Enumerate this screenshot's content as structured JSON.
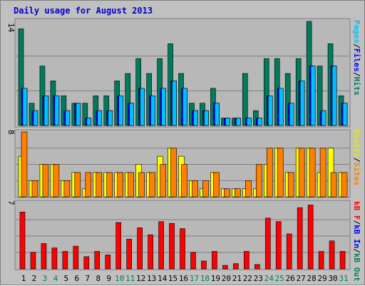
{
  "title": "Daily usage for August 2013",
  "colors": {
    "background": "#c0c0c0",
    "plot_area": "#b8b8b8",
    "hits": "#007b5e",
    "files": "#0000ff",
    "pages": "#00c0ff",
    "sites": "#ff8000",
    "visits": "#ffff00",
    "kbin": "#00a060",
    "kbout": "#0000ff",
    "kbf": "#ff0000",
    "weekend_label": "#00805a",
    "weekday_label": "#000000",
    "title_color": "#0000cc"
  },
  "chart_data": [
    {
      "type": "bar",
      "name": "hits-files-pages",
      "ymax_label": "14",
      "ylim": [
        0,
        14
      ],
      "legend": [
        "Pages",
        "Files",
        "Hits"
      ],
      "categories": [
        "1",
        "2",
        "3",
        "4",
        "5",
        "6",
        "7",
        "8",
        "9",
        "10",
        "11",
        "12",
        "13",
        "14",
        "15",
        "16",
        "17",
        "18",
        "19",
        "20",
        "21",
        "22",
        "23",
        "24",
        "25",
        "26",
        "27",
        "28",
        "29",
        "30",
        "31"
      ],
      "series": [
        {
          "name": "Hits",
          "values": [
            13,
            3,
            8,
            6,
            4,
            3,
            3,
            4,
            4,
            6,
            7,
            9,
            7,
            9,
            11,
            7,
            3,
            3,
            5,
            1,
            1,
            7,
            2,
            9,
            9,
            7,
            9,
            14,
            8,
            11,
            4
          ]
        },
        {
          "name": "Files",
          "values": [
            5,
            2,
            4,
            4,
            2,
            3,
            1,
            2,
            2,
            4,
            3,
            5,
            4,
            5,
            6,
            5,
            2,
            2,
            3,
            1,
            1,
            1,
            1,
            4,
            5,
            3,
            6,
            8,
            2,
            8,
            3
          ]
        },
        {
          "name": "Pages",
          "values": [
            5,
            2,
            4,
            4,
            2,
            3,
            1,
            2,
            2,
            4,
            3,
            5,
            4,
            5,
            6,
            5,
            2,
            2,
            3,
            1,
            1,
            1,
            1,
            4,
            5,
            3,
            6,
            8,
            2,
            8,
            3
          ]
        }
      ]
    },
    {
      "type": "bar",
      "name": "visits-sites",
      "ymax_label": "8",
      "ylim": [
        0,
        8
      ],
      "legend": [
        "Visits",
        "Sites"
      ],
      "categories": [
        "1",
        "2",
        "3",
        "4",
        "5",
        "6",
        "7",
        "8",
        "9",
        "10",
        "11",
        "12",
        "13",
        "14",
        "15",
        "16",
        "17",
        "18",
        "19",
        "20",
        "21",
        "22",
        "23",
        "24",
        "25",
        "26",
        "27",
        "28",
        "29",
        "30",
        "31"
      ],
      "series": [
        {
          "name": "Visits",
          "values": [
            5,
            2,
            4,
            4,
            2,
            3,
            1,
            3,
            3,
            3,
            3,
            4,
            3,
            5,
            6,
            5,
            2,
            1,
            3,
            1,
            1,
            1,
            1,
            4,
            6,
            3,
            6,
            6,
            3,
            6,
            3
          ]
        },
        {
          "name": "Sites",
          "values": [
            8,
            2,
            4,
            4,
            2,
            3,
            3,
            3,
            3,
            3,
            3,
            3,
            3,
            4,
            6,
            4,
            2,
            2,
            3,
            1,
            1,
            2,
            4,
            6,
            6,
            3,
            6,
            6,
            6,
            3,
            3
          ]
        }
      ]
    },
    {
      "type": "bar",
      "name": "kbytes",
      "ymax_label": "7",
      "ylim": [
        0,
        7
      ],
      "legend": [
        "kB F",
        "kB In",
        "kB Out"
      ],
      "categories": [
        "1",
        "2",
        "3",
        "4",
        "5",
        "6",
        "7",
        "8",
        "9",
        "10",
        "11",
        "12",
        "13",
        "14",
        "15",
        "16",
        "17",
        "18",
        "19",
        "20",
        "21",
        "22",
        "23",
        "24",
        "25",
        "26",
        "27",
        "28",
        "29",
        "30",
        "31"
      ],
      "series": [
        {
          "name": "kB F",
          "values": [
            6.5,
            1.9,
            2.9,
            2.4,
            2.0,
            2.6,
            1.4,
            2.0,
            1.6,
            5.3,
            3.4,
            4.7,
            3.9,
            5.4,
            5.2,
            4.6,
            1.9,
            0.9,
            2.0,
            0.4,
            0.6,
            2.0,
            0.5,
            5.8,
            5.4,
            4.0,
            7.0,
            7.3,
            2.0,
            3.2,
            2.0
          ]
        }
      ]
    }
  ],
  "x_labels": [
    {
      "t": "1",
      "we": false
    },
    {
      "t": "2",
      "we": false
    },
    {
      "t": "3",
      "we": true
    },
    {
      "t": "4",
      "we": true
    },
    {
      "t": "5",
      "we": false
    },
    {
      "t": "6",
      "we": false
    },
    {
      "t": "7",
      "we": false
    },
    {
      "t": "8",
      "we": false
    },
    {
      "t": "9",
      "we": false
    },
    {
      "t": "10",
      "we": true
    },
    {
      "t": "11",
      "we": true
    },
    {
      "t": "12",
      "we": false
    },
    {
      "t": "13",
      "we": false
    },
    {
      "t": "14",
      "we": false
    },
    {
      "t": "15",
      "we": false
    },
    {
      "t": "16",
      "we": false
    },
    {
      "t": "17",
      "we": true
    },
    {
      "t": "18",
      "we": true
    },
    {
      "t": "19",
      "we": false
    },
    {
      "t": "20",
      "we": false
    },
    {
      "t": "21",
      "we": false
    },
    {
      "t": "22",
      "we": false
    },
    {
      "t": "23",
      "we": false
    },
    {
      "t": "24",
      "we": true
    },
    {
      "t": "25",
      "we": true
    },
    {
      "t": "26",
      "we": false
    },
    {
      "t": "27",
      "we": false
    },
    {
      "t": "28",
      "we": false
    },
    {
      "t": "29",
      "we": false
    },
    {
      "t": "30",
      "we": false
    },
    {
      "t": "31",
      "we": true
    }
  ],
  "legends": {
    "panel1": [
      {
        "text": "Pages",
        "color": "#00c0ff"
      },
      {
        "text": "/",
        "color": "#000000"
      },
      {
        "text": "Files",
        "color": "#0000ff"
      },
      {
        "text": "/",
        "color": "#000000"
      },
      {
        "text": "Hits",
        "color": "#007b5e"
      }
    ],
    "panel2": [
      {
        "text": "Visits",
        "color": "#e8e800"
      },
      {
        "text": "/",
        "color": "#000000"
      },
      {
        "text": "Sites",
        "color": "#ff8000"
      }
    ],
    "panel3": [
      {
        "text": "kB F",
        "color": "#ff0000"
      },
      {
        "text": "/",
        "color": "#000000"
      },
      {
        "text": "kB In",
        "color": "#0000ff"
      },
      {
        "text": "/",
        "color": "#000000"
      },
      {
        "text": "kB Out",
        "color": "#00805a"
      }
    ]
  }
}
